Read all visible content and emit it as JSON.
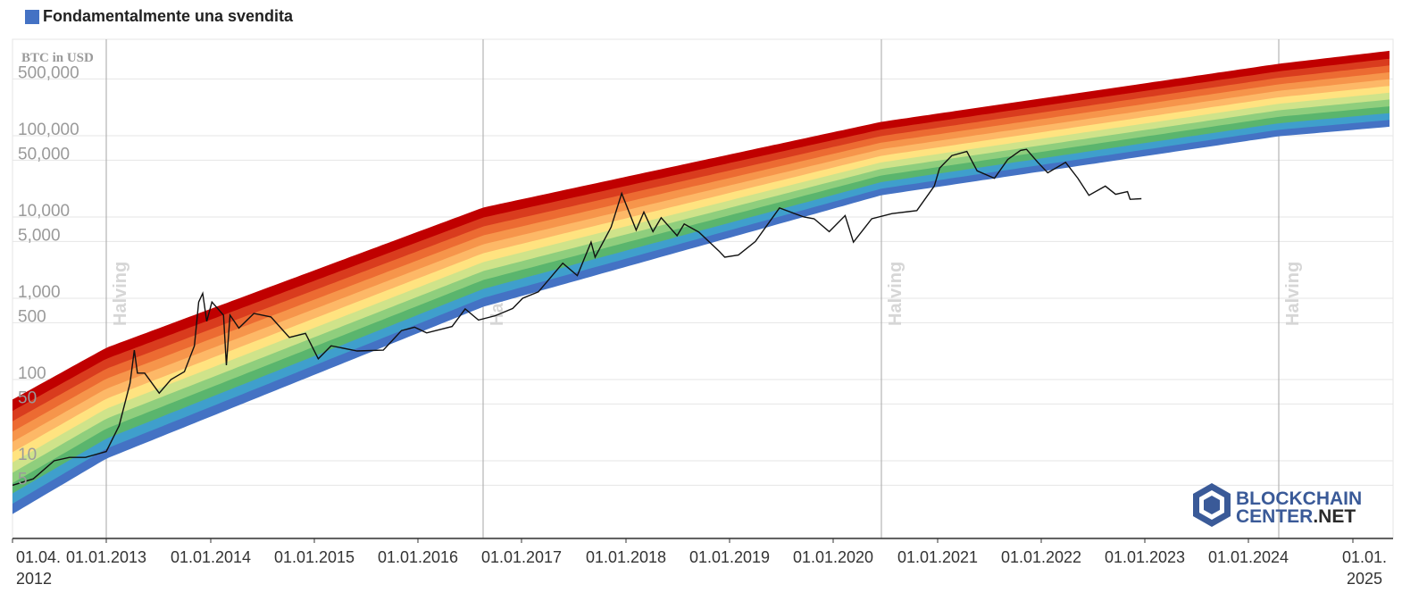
{
  "chart_data": {
    "type": "line",
    "legend": [
      {
        "label": "Fondamentalmente una svendita",
        "color": "#4472c4"
      }
    ],
    "axis_title": "BTC in USD",
    "y_scale": "log",
    "y_ticks": [
      {
        "value": 5,
        "label": "5"
      },
      {
        "value": 10,
        "label": "10"
      },
      {
        "value": 50,
        "label": "50"
      },
      {
        "value": 100,
        "label": "100"
      },
      {
        "value": 500,
        "label": "500"
      },
      {
        "value": 1000,
        "label": "1,000"
      },
      {
        "value": 5000,
        "label": "5,000"
      },
      {
        "value": 10000,
        "label": "10,000"
      },
      {
        "value": 50000,
        "label": "50,000"
      },
      {
        "value": 100000,
        "label": "100,000"
      },
      {
        "value": 500000,
        "label": "500,000"
      }
    ],
    "x_ticks": [
      {
        "date": "2012-04-01",
        "label": [
          "01.04.",
          "2012"
        ]
      },
      {
        "date": "2013-01-01",
        "label": [
          "01.01.2013"
        ]
      },
      {
        "date": "2014-01-01",
        "label": [
          "01.01.2014"
        ]
      },
      {
        "date": "2015-01-01",
        "label": [
          "01.01.2015"
        ]
      },
      {
        "date": "2016-01-01",
        "label": [
          "01.01.2016"
        ]
      },
      {
        "date": "2017-01-01",
        "label": [
          "01.01.2017"
        ]
      },
      {
        "date": "2018-01-01",
        "label": [
          "01.01.2018"
        ]
      },
      {
        "date": "2019-01-01",
        "label": [
          "01.01.2019"
        ]
      },
      {
        "date": "2020-01-01",
        "label": [
          "01.01.2020"
        ]
      },
      {
        "date": "2021-01-01",
        "label": [
          "01.01.2021"
        ]
      },
      {
        "date": "2022-01-01",
        "label": [
          "01.01.2022"
        ]
      },
      {
        "date": "2023-01-01",
        "label": [
          "01.01.2023"
        ]
      },
      {
        "date": "2024-01-01",
        "label": [
          "01.01.2024"
        ]
      },
      {
        "date": "2025-01-01",
        "label": [
          "01.01.",
          "2025"
        ]
      }
    ],
    "halvings": [
      {
        "date": "2012-11-28",
        "label": "Halving"
      },
      {
        "date": "2016-07-09",
        "label": "Halving"
      },
      {
        "date": "2020-05-11",
        "label": "Halving"
      },
      {
        "date": "2024-04-20",
        "label": "Halving"
      }
    ],
    "rainbow_colors": [
      "#4472c4",
      "#3f9fcc",
      "#5ab56d",
      "#8fce7d",
      "#cfe38a",
      "#ffe380",
      "#fdb867",
      "#f6954b",
      "#ec6b32",
      "#d93c1e",
      "#c00000"
    ],
    "price_series": {
      "name": "BTC price",
      "color": "#111111",
      "points": [
        [
          "2012-04-01",
          5
        ],
        [
          "2012-06-01",
          6
        ],
        [
          "2012-08-01",
          10
        ],
        [
          "2012-09-15",
          11
        ],
        [
          "2012-11-01",
          11
        ],
        [
          "2013-01-01",
          13
        ],
        [
          "2013-02-15",
          27
        ],
        [
          "2013-03-25",
          90
        ],
        [
          "2013-04-09",
          230
        ],
        [
          "2013-04-20",
          120
        ],
        [
          "2013-05-15",
          120
        ],
        [
          "2013-07-05",
          68
        ],
        [
          "2013-08-15",
          100
        ],
        [
          "2013-10-01",
          125
        ],
        [
          "2013-11-05",
          260
        ],
        [
          "2013-11-20",
          900
        ],
        [
          "2013-12-04",
          1150
        ],
        [
          "2013-12-18",
          520
        ],
        [
          "2014-01-05",
          900
        ],
        [
          "2014-02-15",
          620
        ],
        [
          "2014-02-25",
          150
        ],
        [
          "2014-03-10",
          620
        ],
        [
          "2014-04-10",
          430
        ],
        [
          "2014-06-02",
          650
        ],
        [
          "2014-08-01",
          590
        ],
        [
          "2014-10-05",
          330
        ],
        [
          "2014-12-01",
          370
        ],
        [
          "2015-01-15",
          180
        ],
        [
          "2015-03-01",
          260
        ],
        [
          "2015-06-01",
          225
        ],
        [
          "2015-09-01",
          230
        ],
        [
          "2015-11-04",
          400
        ],
        [
          "2015-12-20",
          440
        ],
        [
          "2016-02-01",
          375
        ],
        [
          "2016-05-01",
          450
        ],
        [
          "2016-06-16",
          740
        ],
        [
          "2016-08-02",
          540
        ],
        [
          "2016-10-01",
          610
        ],
        [
          "2016-12-01",
          750
        ],
        [
          "2017-01-05",
          1000
        ],
        [
          "2017-03-01",
          1200
        ],
        [
          "2017-05-25",
          2700
        ],
        [
          "2017-07-15",
          1900
        ],
        [
          "2017-09-01",
          4900
        ],
        [
          "2017-09-15",
          3200
        ],
        [
          "2017-11-10",
          7500
        ],
        [
          "2017-12-17",
          19500
        ],
        [
          "2018-02-06",
          6900
        ],
        [
          "2018-03-05",
          11500
        ],
        [
          "2018-04-06",
          6600
        ],
        [
          "2018-05-05",
          9800
        ],
        [
          "2018-06-30",
          5900
        ],
        [
          "2018-07-25",
          8200
        ],
        [
          "2018-09-15",
          6500
        ],
        [
          "2018-11-25",
          3800
        ],
        [
          "2018-12-15",
          3200
        ],
        [
          "2019-02-01",
          3400
        ],
        [
          "2019-04-02",
          5000
        ],
        [
          "2019-06-26",
          12900
        ],
        [
          "2019-09-20",
          10000
        ],
        [
          "2019-10-26",
          9500
        ],
        [
          "2019-12-18",
          6600
        ],
        [
          "2020-02-12",
          10400
        ],
        [
          "2020-03-12",
          4900
        ],
        [
          "2020-05-15",
          9500
        ],
        [
          "2020-07-25",
          11000
        ],
        [
          "2020-10-20",
          12000
        ],
        [
          "2020-12-20",
          24000
        ],
        [
          "2021-01-08",
          40000
        ],
        [
          "2021-02-20",
          57000
        ],
        [
          "2021-04-14",
          64000
        ],
        [
          "2021-05-20",
          37000
        ],
        [
          "2021-07-20",
          30000
        ],
        [
          "2021-09-05",
          51000
        ],
        [
          "2021-10-20",
          66000
        ],
        [
          "2021-11-10",
          68000
        ],
        [
          "2021-12-20",
          47000
        ],
        [
          "2022-01-24",
          35000
        ],
        [
          "2022-03-28",
          47000
        ],
        [
          "2022-05-10",
          30000
        ],
        [
          "2022-06-18",
          18500
        ],
        [
          "2022-08-15",
          24000
        ],
        [
          "2022-09-20",
          19000
        ],
        [
          "2022-11-01",
          20500
        ],
        [
          "2022-11-10",
          16500
        ],
        [
          "2022-12-20",
          16800
        ]
      ]
    }
  },
  "logo": {
    "line1": "BLOCKCHAIN",
    "line2_a": "CENTER",
    "line2_b": ".NET"
  }
}
